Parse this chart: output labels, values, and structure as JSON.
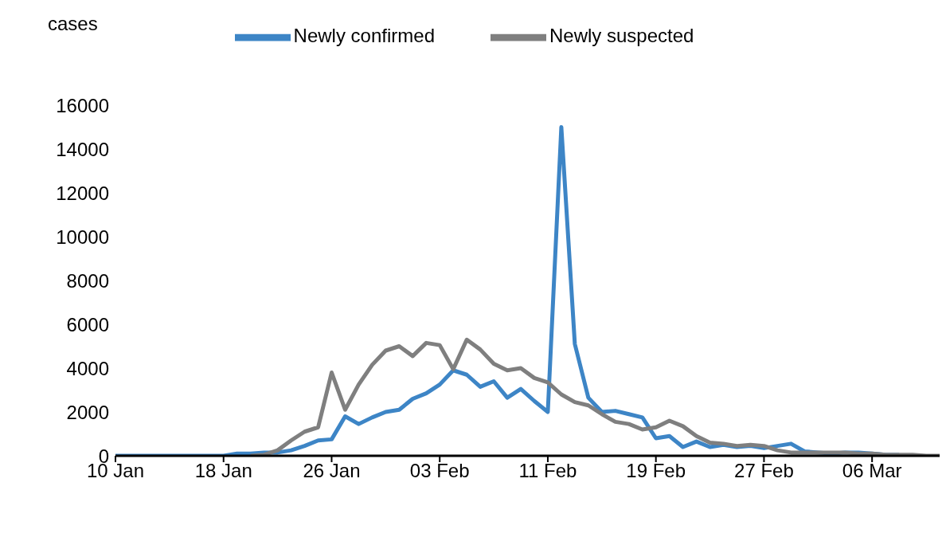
{
  "chart_data": {
    "type": "line",
    "ylabel": "cases",
    "x": [
      "--01-10",
      "--01-11",
      "--01-12",
      "--01-13",
      "--01-14",
      "--01-15",
      "--01-16",
      "--01-17",
      "--01-18",
      "--01-19",
      "--01-20",
      "--01-21",
      "--01-22",
      "--01-23",
      "--01-24",
      "--01-25",
      "--01-26",
      "--01-27",
      "--01-28",
      "--01-29",
      "--01-30",
      "--01-31",
      "--02-01",
      "--02-02",
      "--02-03",
      "--02-04",
      "--02-05",
      "--02-06",
      "--02-07",
      "--02-08",
      "--02-09",
      "--02-10",
      "--02-11",
      "--02-12",
      "--02-13",
      "--02-14",
      "--02-15",
      "--02-16",
      "--02-17",
      "--02-18",
      "--02-19",
      "--02-20",
      "--02-21",
      "--02-22",
      "--02-23",
      "--02-24",
      "--02-25",
      "--02-26",
      "--02-27",
      "--02-28",
      "--02-29",
      "--03-01",
      "--03-02",
      "--03-03",
      "--03-04",
      "--03-05",
      "--03-06",
      "--03-07",
      "--03-08",
      "--03-09",
      "--03-10",
      "--03-11"
    ],
    "series": [
      {
        "name": "Newly confirmed",
        "color": "#3d85c6",
        "values": [
          0,
          0,
          0,
          0,
          0,
          0,
          0,
          0,
          0,
          100,
          100,
          150,
          150,
          250,
          450,
          700,
          750,
          1800,
          1450,
          1750,
          2000,
          2100,
          2600,
          2850,
          3250,
          3900,
          3700,
          3150,
          3400,
          2650,
          3050,
          2500,
          2000,
          15000,
          5100,
          2650,
          2000,
          2050,
          1900,
          1750,
          800,
          900,
          400,
          650,
          400,
          500,
          400,
          450,
          350,
          450,
          550,
          200,
          150,
          100,
          150,
          150,
          100,
          50,
          50,
          null,
          null,
          null
        ]
      },
      {
        "name": "Newly suspected",
        "color": "#7f7f7f",
        "values": [
          null,
          null,
          null,
          null,
          null,
          null,
          null,
          null,
          null,
          null,
          0,
          50,
          250,
          700,
          1100,
          1300,
          3800,
          2100,
          3250,
          4150,
          4800,
          5000,
          4550,
          5150,
          5050,
          3950,
          5300,
          4850,
          4200,
          3900,
          4000,
          3550,
          3350,
          2800,
          2450,
          2300,
          1900,
          1550,
          1450,
          1200,
          1300,
          1600,
          1350,
          900,
          600,
          550,
          450,
          500,
          450,
          250,
          150,
          150,
          150,
          150,
          150,
          100,
          100,
          50,
          50,
          50,
          0,
          0
        ]
      }
    ],
    "xlim": [
      "--01-10",
      "--03-11"
    ],
    "xticks": [
      {
        "value": "--01-10",
        "label": "10 Jan"
      },
      {
        "value": "--01-18",
        "label": "18 Jan"
      },
      {
        "value": "--01-26",
        "label": "26 Jan"
      },
      {
        "value": "--02-03",
        "label": "03 Feb"
      },
      {
        "value": "--02-11",
        "label": "11 Feb"
      },
      {
        "value": "--02-19",
        "label": "19 Feb"
      },
      {
        "value": "--02-27",
        "label": "27 Feb"
      },
      {
        "value": "--03-06",
        "label": "06 Mar"
      }
    ],
    "ylim": [
      0,
      16000
    ],
    "yticks": [
      0,
      2000,
      4000,
      6000,
      8000,
      10000,
      12000,
      14000,
      16000
    ],
    "grid": false,
    "legend": "top",
    "marker": "none",
    "line_style": "solid"
  }
}
